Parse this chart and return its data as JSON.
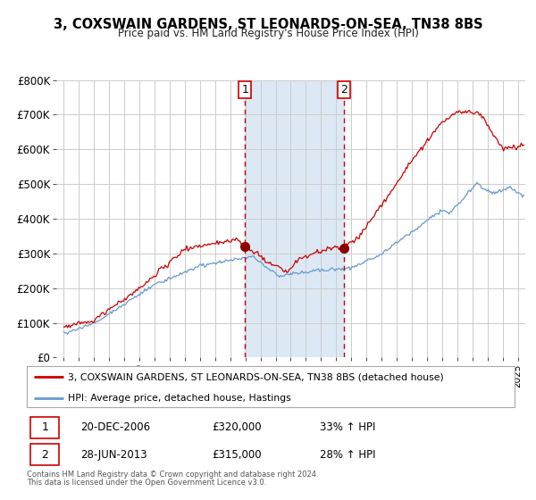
{
  "title": "3, COXSWAIN GARDENS, ST LEONARDS-ON-SEA, TN38 8BS",
  "subtitle": "Price paid vs. HM Land Registry's House Price Index (HPI)",
  "legend_line1": "3, COXSWAIN GARDENS, ST LEONARDS-ON-SEA, TN38 8BS (detached house)",
  "legend_line2": "HPI: Average price, detached house, Hastings",
  "sale1_date": "20-DEC-2006",
  "sale1_price": "£320,000",
  "sale1_hpi": "33% ↑ HPI",
  "sale2_date": "28-JUN-2013",
  "sale2_price": "£315,000",
  "sale2_hpi": "28% ↑ HPI",
  "footer1": "Contains HM Land Registry data © Crown copyright and database right 2024.",
  "footer2": "This data is licensed under the Open Government Licence v3.0.",
  "red_color": "#cc0000",
  "blue_color": "#6699cc",
  "shade_color": "#dce9f5",
  "vline_color": "#cc0000",
  "grid_color": "#cccccc",
  "bg_color": "#ffffff",
  "ylim": [
    0,
    800000
  ],
  "yticks": [
    0,
    100000,
    200000,
    300000,
    400000,
    500000,
    600000,
    700000,
    800000
  ],
  "ytick_labels": [
    "£0",
    "£100K",
    "£200K",
    "£300K",
    "£400K",
    "£500K",
    "£600K",
    "£700K",
    "£800K"
  ],
  "xmin": 1994.5,
  "xmax": 2025.5,
  "sale1_x": 2006.97,
  "sale1_y": 320000,
  "sale2_x": 2013.49,
  "sale2_y": 315000
}
